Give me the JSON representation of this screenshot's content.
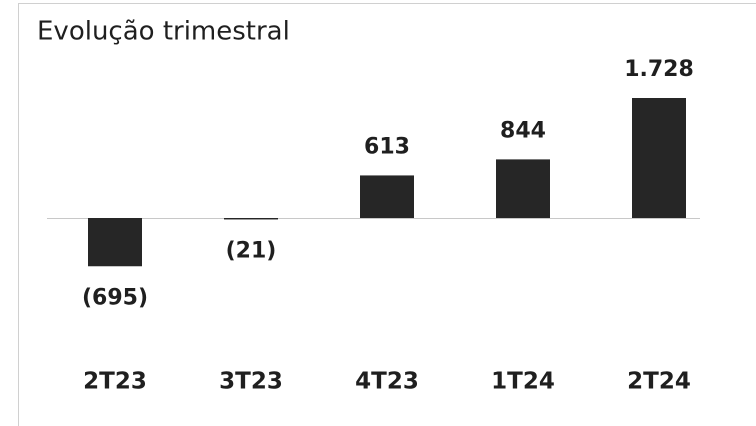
{
  "chart_data": {
    "type": "bar",
    "title": "Evolução trimestral",
    "categories": [
      "2T23",
      "3T23",
      "4T23",
      "1T24",
      "2T24"
    ],
    "values": [
      -695,
      -21,
      613,
      844,
      1728
    ],
    "value_labels": [
      "(695)",
      "(21)",
      "613",
      "844",
      "1.728"
    ],
    "color": "#262626"
  }
}
